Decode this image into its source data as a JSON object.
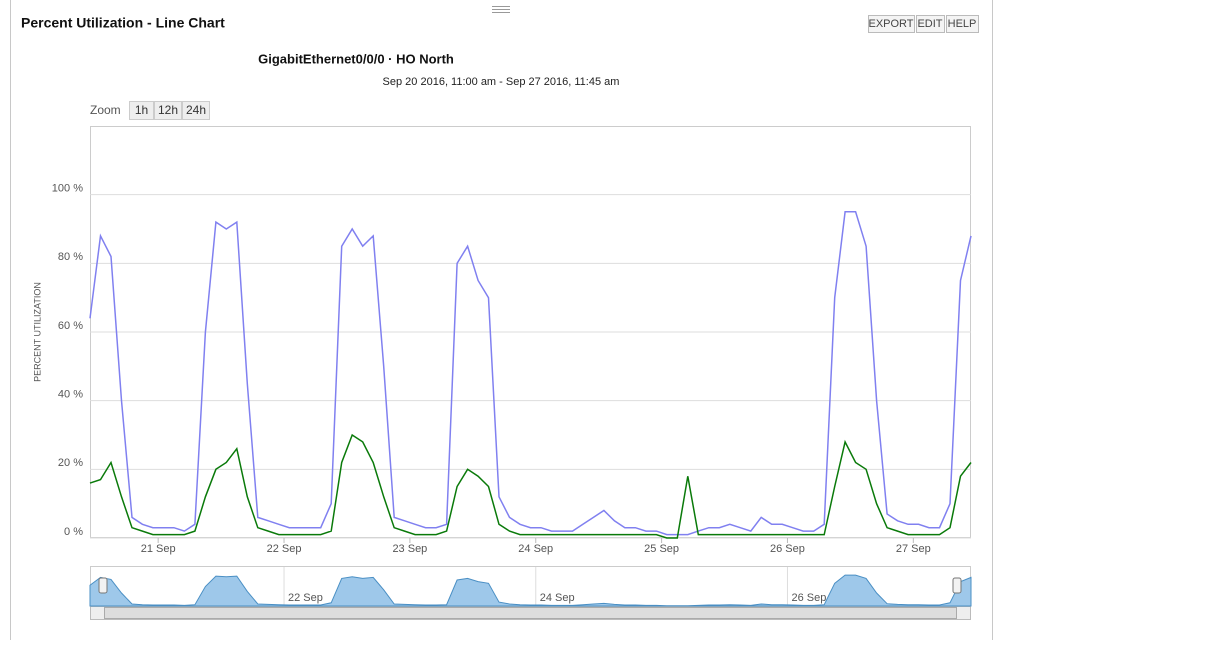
{
  "panel": {
    "title": "Percent Utilization - Line Chart",
    "buttons": [
      "EXPORT",
      "EDIT",
      "HELP"
    ]
  },
  "chart_data": {
    "type": "line",
    "title": "GigabitEthernet0/0/0 · HO North",
    "subtitle": "Sep 20 2016, 11:00 am - Sep 27 2016, 11:45 am",
    "y_label": "PERCENT UTILIZATION",
    "zoom": {
      "label": "Zoom",
      "buttons": [
        "1h",
        "12h",
        "24h"
      ]
    },
    "grid": true,
    "xlim": [
      0,
      84
    ],
    "xticks": [
      {
        "value": 6.5,
        "label": "21 Sep"
      },
      {
        "value": 18.5,
        "label": "22 Sep"
      },
      {
        "value": 30.5,
        "label": "23 Sep"
      },
      {
        "value": 42.5,
        "label": "24 Sep"
      },
      {
        "value": 54.5,
        "label": "25 Sep"
      },
      {
        "value": 66.5,
        "label": "26 Sep"
      },
      {
        "value": 78.5,
        "label": "27 Sep"
      }
    ],
    "ylim": [
      0,
      120
    ],
    "yticks": [
      {
        "value": 0,
        "label": "0 %"
      },
      {
        "value": 20,
        "label": "20 %"
      },
      {
        "value": 40,
        "label": "40 %"
      },
      {
        "value": 60,
        "label": "60 %"
      },
      {
        "value": 80,
        "label": "80 %"
      },
      {
        "value": 100,
        "label": "100 %"
      }
    ],
    "series": [
      {
        "color": "#8080f0",
        "values": [
          64,
          88,
          82,
          40,
          6,
          4,
          3,
          3,
          3,
          2,
          4,
          60,
          92,
          90,
          92,
          45,
          6,
          5,
          4,
          3,
          3,
          3,
          3,
          10,
          85,
          90,
          85,
          88,
          50,
          6,
          5,
          4,
          3,
          3,
          4,
          80,
          85,
          75,
          70,
          12,
          6,
          4,
          3,
          3,
          2,
          2,
          2,
          4,
          6,
          8,
          5,
          3,
          3,
          2,
          2,
          1,
          1,
          1,
          2,
          3,
          3,
          4,
          3,
          2,
          6,
          4,
          4,
          3,
          2,
          2,
          4,
          70,
          95,
          95,
          85,
          40,
          7,
          5,
          4,
          4,
          3,
          3,
          10,
          75,
          88
        ]
      },
      {
        "color": "#0a7a0a",
        "values": [
          16,
          17,
          22,
          12,
          3,
          2,
          1,
          1,
          1,
          1,
          2,
          12,
          20,
          22,
          26,
          12,
          3,
          2,
          1,
          1,
          1,
          1,
          1,
          2,
          22,
          30,
          28,
          22,
          12,
          3,
          2,
          1,
          1,
          1,
          2,
          15,
          20,
          18,
          15,
          4,
          2,
          1,
          1,
          1,
          1,
          1,
          1,
          1,
          1,
          1,
          1,
          1,
          1,
          1,
          1,
          0,
          0,
          18,
          1,
          1,
          1,
          1,
          1,
          1,
          1,
          1,
          1,
          1,
          1,
          1,
          1,
          15,
          28,
          22,
          20,
          10,
          3,
          2,
          1,
          1,
          1,
          1,
          3,
          18,
          22
        ]
      }
    ],
    "navigator": {
      "xticks": [
        {
          "value": 18.5,
          "label": "22 Sep"
        },
        {
          "value": 42.5,
          "label": "24 Sep"
        },
        {
          "value": 66.5,
          "label": "26 Sep"
        }
      ],
      "color": "#9ec8ea"
    }
  }
}
